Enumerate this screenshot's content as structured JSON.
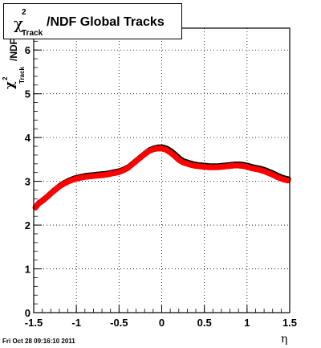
{
  "chart_data": {
    "type": "scatter",
    "title": {
      "chi": "χ",
      "sup": "2",
      "sub": "Track",
      "rest": "/NDF  Global Tracks"
    },
    "ylabel": {
      "chi": "χ",
      "sup": "2",
      "sub": "Track",
      "rest": "/NDF"
    },
    "xlabel": "η",
    "xlim": [
      -1.5,
      1.5
    ],
    "ylim": [
      0,
      6.5
    ],
    "xticks": [
      -1.5,
      -1,
      -0.5,
      0,
      0.5,
      1,
      1.5
    ],
    "xtick_labels": [
      "-1.5",
      "-1",
      "-0.5",
      "0",
      "0.5",
      "1",
      "1.5"
    ],
    "yticks": [
      0,
      1,
      2,
      3,
      4,
      5,
      6
    ],
    "ytick_labels": [
      "0",
      "1",
      "2",
      "3",
      "4",
      "5",
      "6"
    ],
    "grid": true,
    "series": [
      {
        "color": "#ff0000",
        "marker_edge": "#000000",
        "x": [
          -1.48,
          -1.45,
          -1.4,
          -1.35,
          -1.3,
          -1.25,
          -1.2,
          -1.15,
          -1.1,
          -1.05,
          -1.0,
          -0.95,
          -0.9,
          -0.85,
          -0.8,
          -0.75,
          -0.7,
          -0.65,
          -0.6,
          -0.55,
          -0.5,
          -0.45,
          -0.4,
          -0.35,
          -0.3,
          -0.25,
          -0.2,
          -0.15,
          -0.1,
          -0.05,
          0.0,
          0.05,
          0.1,
          0.15,
          0.2,
          0.25,
          0.3,
          0.35,
          0.4,
          0.45,
          0.5,
          0.55,
          0.6,
          0.65,
          0.7,
          0.75,
          0.8,
          0.85,
          0.9,
          0.95,
          1.0,
          1.05,
          1.1,
          1.15,
          1.2,
          1.25,
          1.3,
          1.35,
          1.4,
          1.45,
          1.48
        ],
        "y": [
          2.4,
          2.48,
          2.55,
          2.63,
          2.72,
          2.8,
          2.88,
          2.94,
          2.99,
          3.03,
          3.06,
          3.08,
          3.1,
          3.11,
          3.12,
          3.13,
          3.14,
          3.15,
          3.17,
          3.19,
          3.21,
          3.25,
          3.3,
          3.38,
          3.46,
          3.54,
          3.62,
          3.69,
          3.73,
          3.75,
          3.75,
          3.72,
          3.66,
          3.58,
          3.49,
          3.43,
          3.4,
          3.37,
          3.35,
          3.34,
          3.33,
          3.32,
          3.32,
          3.32,
          3.33,
          3.34,
          3.35,
          3.36,
          3.36,
          3.35,
          3.33,
          3.3,
          3.28,
          3.26,
          3.23,
          3.19,
          3.15,
          3.1,
          3.06,
          3.03,
          3.02
        ]
      }
    ]
  },
  "footer": {
    "date": "Fri Oct 28 09:16:10 2011"
  }
}
